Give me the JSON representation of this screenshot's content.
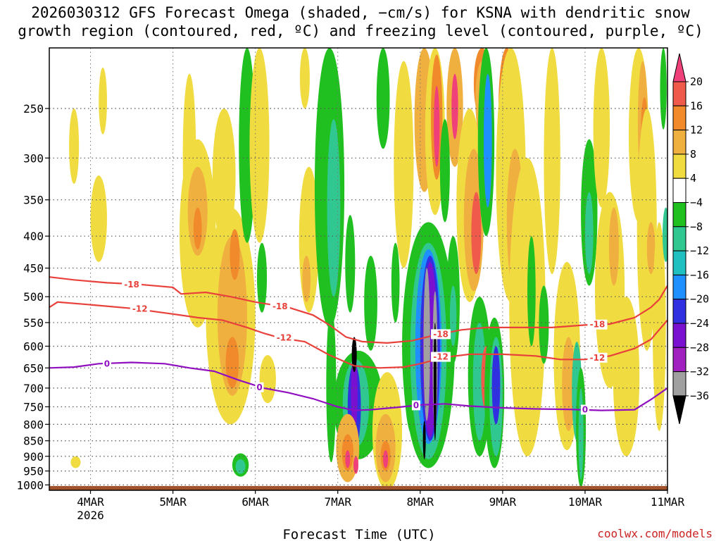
{
  "chart_data": {
    "type": "heatmap",
    "title": [
      "2026030312 GFS Forecast Omega (shaded, −cm/s) for KSNA with dendritic snow",
      "growth region (contoured, red, ºC) and freezing level (contoured, purple, ºC)"
    ],
    "xlabel": "Forecast Time (UTC)",
    "ylabel": "",
    "credit": "coolwx.com/models",
    "x_range": [
      3.5,
      11.0
    ],
    "y_range": [
      1020,
      200
    ],
    "x_ticks": [
      {
        "v": 4,
        "label": "4MAR",
        "sub": "2026"
      },
      {
        "v": 5,
        "label": "5MAR",
        "sub": ""
      },
      {
        "v": 6,
        "label": "6MAR",
        "sub": ""
      },
      {
        "v": 7,
        "label": "7MAR",
        "sub": ""
      },
      {
        "v": 8,
        "label": "8MAR",
        "sub": ""
      },
      {
        "v": 9,
        "label": "9MAR",
        "sub": ""
      },
      {
        "v": 10,
        "label": "10MAR",
        "sub": ""
      },
      {
        "v": 11,
        "label": "11MAR",
        "sub": ""
      }
    ],
    "y_ticks": [
      250,
      300,
      350,
      400,
      450,
      500,
      550,
      600,
      650,
      700,
      750,
      800,
      850,
      900,
      950,
      1000
    ],
    "colorbar": {
      "levels": [
        "20",
        "16",
        "12",
        "8",
        "4",
        "−4",
        "−8",
        "−12",
        "−16",
        "−20",
        "−24",
        "−28",
        "−32",
        "−36"
      ],
      "colors": [
        "#f0407a",
        "#f05a4a",
        "#f08a2a",
        "#f0b040",
        "#f0dc40",
        "#ffffff",
        "#20c020",
        "#30c890",
        "#20c0c0",
        "#1e90ff",
        "#3030e0",
        "#7a10d0",
        "#a020c0",
        "#a0a0a0",
        "#000000"
      ]
    },
    "surface_color": "#a0522d",
    "blobs": [
      {
        "t": 3.8,
        "p": 290,
        "dt": 0.06,
        "dp": 40,
        "c": "#f0dc40"
      },
      {
        "t": 3.82,
        "p": 920,
        "dt": 0.06,
        "dp": 20,
        "c": "#f0dc40"
      },
      {
        "t": 4.1,
        "p": 380,
        "dt": 0.1,
        "dp": 60,
        "c": "#f0dc40"
      },
      {
        "t": 4.15,
        "p": 245,
        "dt": 0.05,
        "dp": 30,
        "c": "#f0dc40"
      },
      {
        "t": 5.2,
        "p": 310,
        "dt": 0.08,
        "dp": 90,
        "c": "#f0dc40"
      },
      {
        "t": 5.3,
        "p": 420,
        "dt": 0.22,
        "dp": 140,
        "c": "#f0dc40"
      },
      {
        "t": 5.3,
        "p": 370,
        "dt": 0.12,
        "dp": 60,
        "c": "#f0b040"
      },
      {
        "t": 5.3,
        "p": 390,
        "dt": 0.05,
        "dp": 30,
        "c": "#f08a2a"
      },
      {
        "t": 5.62,
        "p": 330,
        "dt": 0.14,
        "dp": 80,
        "c": "#f0dc40"
      },
      {
        "t": 5.7,
        "p": 580,
        "dt": 0.3,
        "dp": 220,
        "c": "#f0dc40"
      },
      {
        "t": 5.72,
        "p": 560,
        "dt": 0.18,
        "dp": 160,
        "c": "#f0b040"
      },
      {
        "t": 5.72,
        "p": 640,
        "dt": 0.08,
        "dp": 60,
        "c": "#f08a2a"
      },
      {
        "t": 5.75,
        "p": 430,
        "dt": 0.06,
        "dp": 40,
        "c": "#f08a2a"
      },
      {
        "t": 5.82,
        "p": 930,
        "dt": 0.1,
        "dp": 40,
        "c": "#20c020"
      },
      {
        "t": 5.82,
        "p": 935,
        "dt": 0.06,
        "dp": 25,
        "c": "#30c890"
      },
      {
        "t": 5.9,
        "p": 300,
        "dt": 0.1,
        "dp": 110,
        "c": "#20c020"
      },
      {
        "t": 6.05,
        "p": 300,
        "dt": 0.12,
        "dp": 110,
        "c": "#f0dc40"
      },
      {
        "t": 6.08,
        "p": 470,
        "dt": 0.06,
        "dp": 60,
        "c": "#20c020"
      },
      {
        "t": 6.15,
        "p": 680,
        "dt": 0.1,
        "dp": 60,
        "c": "#f0dc40"
      },
      {
        "t": 6.6,
        "p": 210,
        "dt": 0.06,
        "dp": 40,
        "c": "#f0dc40"
      },
      {
        "t": 6.65,
        "p": 420,
        "dt": 0.12,
        "dp": 110,
        "c": "#f0dc40"
      },
      {
        "t": 6.62,
        "p": 470,
        "dt": 0.05,
        "dp": 40,
        "c": "#f0b040"
      },
      {
        "t": 6.9,
        "p": 380,
        "dt": 0.18,
        "dp": 180,
        "c": "#20c020"
      },
      {
        "t": 6.95,
        "p": 380,
        "dt": 0.08,
        "dp": 120,
        "c": "#30c890"
      },
      {
        "t": 6.92,
        "p": 720,
        "dt": 0.06,
        "dp": 200,
        "c": "#20c020"
      },
      {
        "t": 7.15,
        "p": 450,
        "dt": 0.06,
        "dp": 80,
        "c": "#20c020"
      },
      {
        "t": 7.25,
        "p": 760,
        "dt": 0.3,
        "dp": 150,
        "c": "#20c020"
      },
      {
        "t": 7.22,
        "p": 750,
        "dt": 0.16,
        "dp": 120,
        "c": "#30c890"
      },
      {
        "t": 7.2,
        "p": 760,
        "dt": 0.08,
        "dp": 120,
        "c": "#3030e0"
      },
      {
        "t": 7.2,
        "p": 720,
        "dt": 0.04,
        "dp": 100,
        "c": "#7a10d0"
      },
      {
        "t": 7.12,
        "p": 880,
        "dt": 0.14,
        "dp": 110,
        "c": "#f0b040"
      },
      {
        "t": 7.12,
        "p": 890,
        "dt": 0.07,
        "dp": 60,
        "c": "#f08a2a"
      },
      {
        "t": 7.12,
        "p": 910,
        "dt": 0.03,
        "dp": 30,
        "c": "#f0407a"
      },
      {
        "t": 7.22,
        "p": 930,
        "dt": 0.03,
        "dp": 30,
        "c": "#f0407a"
      },
      {
        "t": 7.2,
        "p": 620,
        "dt": 0.03,
        "dp": 40,
        "c": "#000000"
      },
      {
        "t": 7.4,
        "p": 520,
        "dt": 0.08,
        "dp": 90,
        "c": "#20c020"
      },
      {
        "t": 7.55,
        "p": 230,
        "dt": 0.08,
        "dp": 60,
        "c": "#20c020"
      },
      {
        "t": 7.6,
        "p": 840,
        "dt": 0.18,
        "dp": 180,
        "c": "#f0dc40"
      },
      {
        "t": 7.58,
        "p": 880,
        "dt": 0.12,
        "dp": 110,
        "c": "#f0b040"
      },
      {
        "t": 7.58,
        "p": 900,
        "dt": 0.06,
        "dp": 50,
        "c": "#f08a2a"
      },
      {
        "t": 7.58,
        "p": 910,
        "dt": 0.03,
        "dp": 30,
        "c": "#f0407a"
      },
      {
        "t": 7.7,
        "p": 480,
        "dt": 0.05,
        "dp": 70,
        "c": "#20c020"
      },
      {
        "t": 7.8,
        "p": 330,
        "dt": 0.12,
        "dp": 120,
        "c": "#f0dc40"
      },
      {
        "t": 7.9,
        "p": 660,
        "dt": 0.1,
        "dp": 170,
        "c": "#20c020"
      },
      {
        "t": 8.1,
        "p": 660,
        "dt": 0.32,
        "dp": 280,
        "c": "#20c020"
      },
      {
        "t": 8.1,
        "p": 660,
        "dt": 0.22,
        "dp": 250,
        "c": "#30c890"
      },
      {
        "t": 8.1,
        "p": 640,
        "dt": 0.16,
        "dp": 220,
        "c": "#1e90ff"
      },
      {
        "t": 8.12,
        "p": 640,
        "dt": 0.12,
        "dp": 210,
        "c": "#3030e0"
      },
      {
        "t": 8.12,
        "p": 640,
        "dt": 0.09,
        "dp": 200,
        "c": "#7a10d0"
      },
      {
        "t": 8.08,
        "p": 620,
        "dt": 0.04,
        "dp": 170,
        "c": "#a0a0a0"
      },
      {
        "t": 8.18,
        "p": 650,
        "dt": 0.03,
        "dp": 160,
        "c": "#a0a0a0"
      },
      {
        "t": 8.18,
        "p": 700,
        "dt": 0.015,
        "dp": 150,
        "c": "#000000"
      },
      {
        "t": 8.05,
        "p": 850,
        "dt": 0.015,
        "dp": 60,
        "c": "#000000"
      },
      {
        "t": 8.05,
        "p": 250,
        "dt": 0.12,
        "dp": 90,
        "c": "#f0b040"
      },
      {
        "t": 8.18,
        "p": 270,
        "dt": 0.12,
        "dp": 100,
        "c": "#f0dc40"
      },
      {
        "t": 8.2,
        "p": 265,
        "dt": 0.07,
        "dp": 60,
        "c": "#f08a2a"
      },
      {
        "t": 8.2,
        "p": 270,
        "dt": 0.035,
        "dp": 40,
        "c": "#f0407a"
      },
      {
        "t": 8.42,
        "p": 250,
        "dt": 0.1,
        "dp": 60,
        "c": "#f0b040"
      },
      {
        "t": 8.42,
        "p": 250,
        "dt": 0.04,
        "dp": 30,
        "c": "#f0407a"
      },
      {
        "t": 8.3,
        "p": 320,
        "dt": 0.06,
        "dp": 60,
        "c": "#20c020"
      },
      {
        "t": 8.4,
        "p": 520,
        "dt": 0.08,
        "dp": 120,
        "c": "#20c020"
      },
      {
        "t": 8.4,
        "p": 540,
        "dt": 0.04,
        "dp": 60,
        "c": "#30c890"
      },
      {
        "t": 8.6,
        "p": 380,
        "dt": 0.16,
        "dp": 130,
        "c": "#f0dc40"
      },
      {
        "t": 8.65,
        "p": 390,
        "dt": 0.12,
        "dp": 100,
        "c": "#f0b040"
      },
      {
        "t": 8.68,
        "p": 400,
        "dt": 0.06,
        "dp": 60,
        "c": "#f05a4a"
      },
      {
        "t": 8.75,
        "p": 220,
        "dt": 0.1,
        "dp": 40,
        "c": "#f08a2a"
      },
      {
        "t": 8.75,
        "p": 245,
        "dt": 0.08,
        "dp": 35,
        "c": "#f0b040"
      },
      {
        "t": 8.8,
        "p": 280,
        "dt": 0.1,
        "dp": 120,
        "c": "#20c020"
      },
      {
        "t": 8.82,
        "p": 290,
        "dt": 0.05,
        "dp": 70,
        "c": "#1e90ff"
      },
      {
        "t": 8.72,
        "p": 700,
        "dt": 0.14,
        "dp": 200,
        "c": "#20c020"
      },
      {
        "t": 8.72,
        "p": 700,
        "dt": 0.08,
        "dp": 150,
        "c": "#30c890"
      },
      {
        "t": 8.8,
        "p": 680,
        "dt": 0.06,
        "dp": 80,
        "c": "#f05a4a"
      },
      {
        "t": 8.9,
        "p": 740,
        "dt": 0.12,
        "dp": 200,
        "c": "#20c020"
      },
      {
        "t": 8.92,
        "p": 740,
        "dt": 0.08,
        "dp": 160,
        "c": "#30c890"
      },
      {
        "t": 8.92,
        "p": 700,
        "dt": 0.05,
        "dp": 100,
        "c": "#3030e0"
      },
      {
        "t": 9.05,
        "p": 250,
        "dt": 0.1,
        "dp": 60,
        "c": "#f08a2a"
      },
      {
        "t": 9.1,
        "p": 350,
        "dt": 0.18,
        "dp": 160,
        "c": "#f0dc40"
      },
      {
        "t": 9.15,
        "p": 390,
        "dt": 0.1,
        "dp": 100,
        "c": "#f0b040"
      },
      {
        "t": 9.3,
        "p": 600,
        "dt": 0.22,
        "dp": 300,
        "c": "#f0dc40"
      },
      {
        "t": 9.35,
        "p": 500,
        "dt": 0.05,
        "dp": 100,
        "c": "#20c020"
      },
      {
        "t": 9.5,
        "p": 560,
        "dt": 0.06,
        "dp": 80,
        "c": "#20c020"
      },
      {
        "t": 9.6,
        "p": 330,
        "dt": 0.1,
        "dp": 130,
        "c": "#f0dc40"
      },
      {
        "t": 9.78,
        "p": 660,
        "dt": 0.16,
        "dp": 220,
        "c": "#f0dc40"
      },
      {
        "t": 9.8,
        "p": 700,
        "dt": 0.08,
        "dp": 120,
        "c": "#f0b040"
      },
      {
        "t": 9.9,
        "p": 720,
        "dt": 0.06,
        "dp": 130,
        "c": "#30c890"
      },
      {
        "t": 9.95,
        "p": 830,
        "dt": 0.06,
        "dp": 180,
        "c": "#20c020"
      },
      {
        "t": 9.95,
        "p": 840,
        "dt": 0.03,
        "dp": 140,
        "c": "#30c890"
      },
      {
        "t": 10.05,
        "p": 380,
        "dt": 0.1,
        "dp": 100,
        "c": "#20c020"
      },
      {
        "t": 10.05,
        "p": 400,
        "dt": 0.05,
        "dp": 60,
        "c": "#30c890"
      },
      {
        "t": 10.2,
        "p": 280,
        "dt": 0.1,
        "dp": 80,
        "c": "#f0dc40"
      },
      {
        "t": 10.3,
        "p": 520,
        "dt": 0.18,
        "dp": 180,
        "c": "#f0dc40"
      },
      {
        "t": 10.35,
        "p": 420,
        "dt": 0.06,
        "dp": 60,
        "c": "#f0b040"
      },
      {
        "t": 10.5,
        "p": 700,
        "dt": 0.16,
        "dp": 200,
        "c": "#f0dc40"
      },
      {
        "t": 10.65,
        "p": 260,
        "dt": 0.12,
        "dp": 120,
        "c": "#f0dc40"
      },
      {
        "t": 10.7,
        "p": 270,
        "dt": 0.06,
        "dp": 60,
        "c": "#f0b040"
      },
      {
        "t": 10.72,
        "p": 270,
        "dt": 0.04,
        "dp": 30,
        "c": "#f08a2a"
      },
      {
        "t": 10.75,
        "p": 430,
        "dt": 0.12,
        "dp": 180,
        "c": "#f0dc40"
      },
      {
        "t": 10.8,
        "p": 420,
        "dt": 0.05,
        "dp": 40,
        "c": "#f0b040"
      },
      {
        "t": 10.9,
        "p": 600,
        "dt": 0.08,
        "dp": 220,
        "c": "#f0dc40"
      },
      {
        "t": 10.95,
        "p": 230,
        "dt": 0.04,
        "dp": 40,
        "c": "#20c020"
      },
      {
        "t": 10.98,
        "p": 400,
        "dt": 0.04,
        "dp": 40,
        "c": "#30c890"
      }
    ],
    "contours": [
      {
        "name": "dgz-top-minus18",
        "color": "#e8403a",
        "points": [
          [
            3.5,
            465
          ],
          [
            3.8,
            470
          ],
          [
            4.2,
            475
          ],
          [
            4.6,
            478
          ],
          [
            5.0,
            483
          ],
          [
            5.1,
            495
          ],
          [
            5.4,
            492
          ],
          [
            5.7,
            500
          ],
          [
            6.0,
            510
          ],
          [
            6.2,
            515
          ],
          [
            6.4,
            520
          ],
          [
            6.7,
            535
          ],
          [
            6.9,
            555
          ],
          [
            7.1,
            580
          ],
          [
            7.3,
            590
          ],
          [
            7.6,
            593
          ],
          [
            7.9,
            588
          ],
          [
            8.2,
            575
          ],
          [
            8.5,
            565
          ],
          [
            8.8,
            560
          ],
          [
            9.2,
            560
          ],
          [
            9.6,
            560
          ],
          [
            10.0,
            555
          ],
          [
            10.3,
            553
          ],
          [
            10.6,
            540
          ],
          [
            10.8,
            520
          ],
          [
            10.9,
            505
          ],
          [
            11.0,
            480
          ]
        ],
        "labels": [
          {
            "t": 4.5,
            "p": 478,
            "text": "-18"
          },
          {
            "t": 6.3,
            "p": 518,
            "text": "-18"
          },
          {
            "t": 8.25,
            "p": 574,
            "text": "-18"
          },
          {
            "t": 10.15,
            "p": 554,
            "text": "-18"
          }
        ]
      },
      {
        "name": "dgz-bottom-minus12",
        "color": "#e8403a",
        "points": [
          [
            3.5,
            520
          ],
          [
            3.6,
            510
          ],
          [
            4.0,
            515
          ],
          [
            4.5,
            522
          ],
          [
            5.0,
            533
          ],
          [
            5.3,
            540
          ],
          [
            5.6,
            545
          ],
          [
            5.9,
            560
          ],
          [
            6.1,
            572
          ],
          [
            6.3,
            582
          ],
          [
            6.6,
            590
          ],
          [
            6.9,
            620
          ],
          [
            7.2,
            645
          ],
          [
            7.5,
            650
          ],
          [
            7.8,
            648
          ],
          [
            8.0,
            640
          ],
          [
            8.3,
            625
          ],
          [
            8.6,
            618
          ],
          [
            9.0,
            618
          ],
          [
            9.4,
            622
          ],
          [
            9.7,
            630
          ],
          [
            10.0,
            630
          ],
          [
            10.3,
            622
          ],
          [
            10.6,
            605
          ],
          [
            10.8,
            585
          ],
          [
            11.0,
            545
          ]
        ],
        "labels": [
          {
            "t": 4.6,
            "p": 523,
            "text": "-12"
          },
          {
            "t": 6.35,
            "p": 582,
            "text": "-12"
          },
          {
            "t": 8.25,
            "p": 624,
            "text": "-12"
          },
          {
            "t": 10.15,
            "p": 626,
            "text": "-12"
          }
        ]
      },
      {
        "name": "freezing-level-0",
        "color": "#9010c0",
        "points": [
          [
            3.5,
            650
          ],
          [
            3.8,
            648
          ],
          [
            4.1,
            640
          ],
          [
            4.5,
            637
          ],
          [
            4.9,
            640
          ],
          [
            5.2,
            650
          ],
          [
            5.5,
            658
          ],
          [
            5.8,
            680
          ],
          [
            6.1,
            700
          ],
          [
            6.4,
            712
          ],
          [
            6.7,
            728
          ],
          [
            7.0,
            750
          ],
          [
            7.2,
            760
          ],
          [
            7.4,
            758
          ],
          [
            7.7,
            752
          ],
          [
            8.0,
            745
          ],
          [
            8.3,
            742
          ],
          [
            8.6,
            748
          ],
          [
            9.0,
            753
          ],
          [
            9.4,
            756
          ],
          [
            9.8,
            757
          ],
          [
            10.2,
            760
          ],
          [
            10.6,
            758
          ],
          [
            10.8,
            730
          ],
          [
            11.0,
            700
          ]
        ],
        "labels": [
          {
            "t": 4.2,
            "p": 640,
            "text": "0"
          },
          {
            "t": 6.05,
            "p": 698,
            "text": "0"
          },
          {
            "t": 7.95,
            "p": 746,
            "text": "0"
          },
          {
            "t": 10.0,
            "p": 758,
            "text": "0"
          }
        ]
      }
    ]
  }
}
